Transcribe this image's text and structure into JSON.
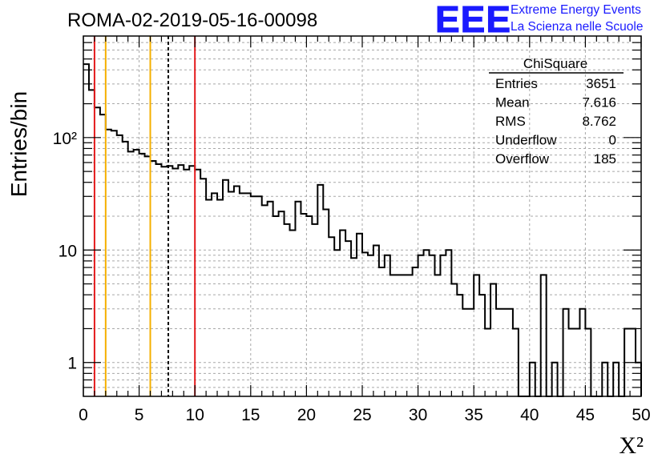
{
  "chart_data": {
    "type": "histogram",
    "title": "ROMA-02-2019-05-16-00098",
    "xlabel": "X²",
    "ylabel": "Entries/bin",
    "yscale": "log",
    "xlim": [
      0,
      50
    ],
    "ylim": [
      0.5,
      800
    ],
    "grid": true,
    "x_ticks": [
      "0",
      "5",
      "10",
      "15",
      "20",
      "25",
      "30",
      "35",
      "40",
      "45",
      "50"
    ],
    "y_ticks": [
      {
        "value": 1,
        "label": "1"
      },
      {
        "value": 10,
        "label": "10"
      },
      {
        "value": 100,
        "label": "10²"
      }
    ],
    "bin_width": 0.5,
    "bin_start": 0,
    "counts": [
      450,
      265,
      185,
      160,
      118,
      115,
      105,
      92,
      75,
      78,
      72,
      68,
      62,
      58,
      55,
      56,
      53,
      57,
      52,
      56,
      52,
      43,
      28,
      32,
      28,
      42,
      33,
      37,
      32,
      32,
      30,
      30,
      25,
      27,
      20,
      22,
      17,
      15,
      27,
      21,
      20,
      17,
      38,
      23,
      13,
      10,
      15,
      12,
      8.5,
      14,
      9.5,
      9,
      11,
      7,
      9,
      6,
      6,
      6,
      6,
      7,
      9,
      10,
      9,
      6,
      9,
      10,
      5,
      4,
      3,
      3,
      6,
      4,
      2,
      5,
      3,
      3,
      3,
      2,
      0,
      0,
      1,
      0,
      6,
      0,
      1,
      0,
      3,
      2,
      2,
      3,
      2,
      0,
      0,
      1,
      0,
      1,
      0,
      2,
      2,
      1
    ],
    "vertical_lines": [
      {
        "x": 1,
        "color": "#e41a1c",
        "style": "solid"
      },
      {
        "x": 2,
        "color": "#f5b000",
        "style": "solid"
      },
      {
        "x": 6,
        "color": "#f5b000",
        "style": "solid"
      },
      {
        "x": 7.616,
        "color": "#000000",
        "style": "dashed"
      },
      {
        "x": 10,
        "color": "#e41a1c",
        "style": "solid"
      }
    ]
  },
  "stats": {
    "name": "ChiSquare",
    "rows": [
      {
        "label": "Entries",
        "value": "3651"
      },
      {
        "label": "Mean",
        "value": "7.616"
      },
      {
        "label": "RMS",
        "value": "8.762"
      },
      {
        "label": "Underflow",
        "value": "0"
      },
      {
        "label": "Overflow",
        "value": "185"
      }
    ]
  },
  "logo": {
    "mark": "EEE",
    "line1": "Extreme Energy Events",
    "line2": "La Scienza nelle Scuole",
    "color": "#1a1aff"
  }
}
